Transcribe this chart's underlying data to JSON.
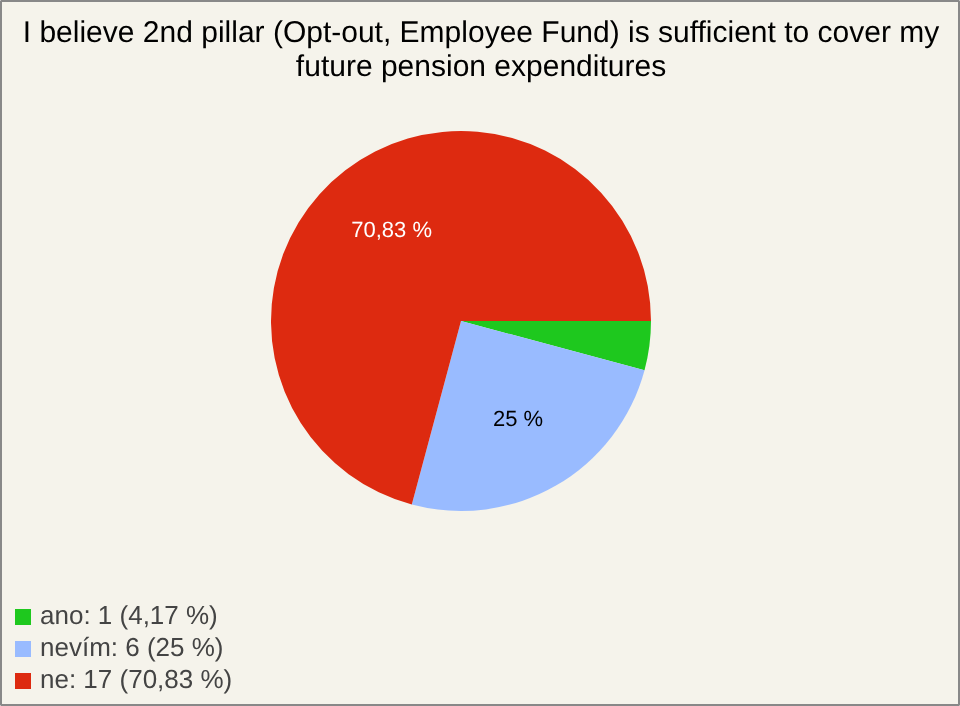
{
  "chart_data": {
    "type": "pie",
    "title": "I believe 2nd pillar (Opt-out, Employee Fund) is sufficient to cover my future pension expenditures",
    "categories": [
      "ano: 1 (4,17 %)",
      "nevím: 6 (25 %)",
      "ne: 17 (70,83 %)"
    ],
    "values": [
      4.17,
      25,
      70.83
    ],
    "colors": [
      "#1ec81e",
      "#99bbff",
      "#dd2a10"
    ],
    "value_labels": [
      null,
      "25 %",
      "70,83 %"
    ],
    "legend": "bottom left"
  }
}
